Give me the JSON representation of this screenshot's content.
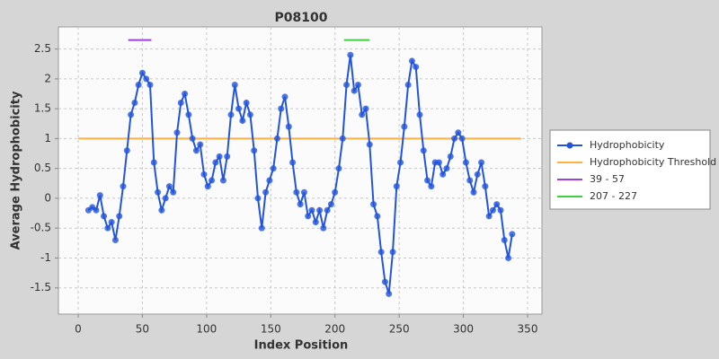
{
  "chart_data": {
    "type": "line",
    "title": "P08100",
    "x_label": "Index Position",
    "y_label": "Average Hydrophobicity",
    "xlim": [
      -15.4,
      361.2
    ],
    "ylim": [
      -1.94,
      2.87
    ],
    "xticks": [
      0,
      50,
      100,
      150,
      200,
      250,
      300,
      350
    ],
    "yticks": [
      -1.5,
      -1,
      -0.5,
      0,
      0.5,
      1,
      1.5,
      2,
      2.5
    ],
    "grid": true,
    "legend": "right",
    "x": [
      8,
      11,
      14,
      17,
      20,
      23,
      26,
      29,
      32,
      35,
      38,
      41,
      44,
      47,
      50,
      53,
      56,
      59,
      62,
      65,
      68,
      71,
      74,
      77,
      80,
      83,
      86,
      89,
      92,
      95,
      98,
      101,
      104,
      107,
      110,
      113,
      116,
      119,
      122,
      125,
      128,
      131,
      134,
      137,
      140,
      143,
      146,
      149,
      152,
      155,
      158,
      161,
      164,
      167,
      170,
      173,
      176,
      179,
      182,
      185,
      188,
      191,
      194,
      197,
      200,
      203,
      206,
      209,
      212,
      215,
      218,
      221,
      224,
      227,
      230,
      233,
      236,
      239,
      242,
      245,
      248,
      251,
      254,
      257,
      260,
      263,
      266,
      269,
      272,
      275,
      278,
      281,
      284,
      287,
      290,
      293,
      296,
      299,
      302,
      305,
      308,
      311,
      314,
      317,
      320,
      323,
      326,
      329,
      332,
      335,
      338
    ],
    "series": [
      {
        "name": "Hydrophobicity",
        "color": "#2255dd",
        "values": [
          -0.2,
          -0.15,
          -0.2,
          0.05,
          -0.3,
          -0.5,
          -0.4,
          -0.7,
          -0.3,
          0.2,
          0.8,
          1.4,
          1.6,
          1.9,
          2.1,
          2.0,
          1.9,
          0.6,
          0.1,
          -0.2,
          0.0,
          0.2,
          0.1,
          1.1,
          1.6,
          1.75,
          1.4,
          1.0,
          0.8,
          0.9,
          0.4,
          0.2,
          0.3,
          0.6,
          0.7,
          0.3,
          0.7,
          1.4,
          1.9,
          1.5,
          1.3,
          1.6,
          1.4,
          0.8,
          0.0,
          -0.5,
          0.1,
          0.3,
          0.5,
          1.0,
          1.5,
          1.7,
          1.2,
          0.6,
          0.1,
          -0.1,
          0.1,
          -0.3,
          -0.2,
          -0.4,
          -0.2,
          -0.5,
          -0.2,
          -0.1,
          0.1,
          0.5,
          1.0,
          1.9,
          2.4,
          1.8,
          1.9,
          1.4,
          1.5,
          0.9,
          -0.1,
          -0.3,
          -0.9,
          -1.4,
          -1.6,
          -0.9,
          0.2,
          0.6,
          1.2,
          1.9,
          2.3,
          2.2,
          1.4,
          0.8,
          0.3,
          0.2,
          0.6,
          0.6,
          0.4,
          0.5,
          0.7,
          1.0,
          1.1,
          1.0,
          0.6,
          0.3,
          0.1,
          0.4,
          0.6,
          0.2,
          -0.3,
          -0.2,
          -0.1,
          -0.2,
          -0.7,
          -1.0,
          -0.6
        ]
      }
    ],
    "threshold": {
      "name": "Hydrophobicity Threshold",
      "value": 1,
      "start": 0,
      "end": 345,
      "color": "#ffb040"
    },
    "ranges": [
      {
        "name": "39 - 57",
        "start": 39,
        "end": 57,
        "y": 2.65,
        "color": "#a040e0"
      },
      {
        "name": "207 - 227",
        "start": 207,
        "end": 227,
        "y": 2.65,
        "color": "#40d040"
      }
    ]
  }
}
